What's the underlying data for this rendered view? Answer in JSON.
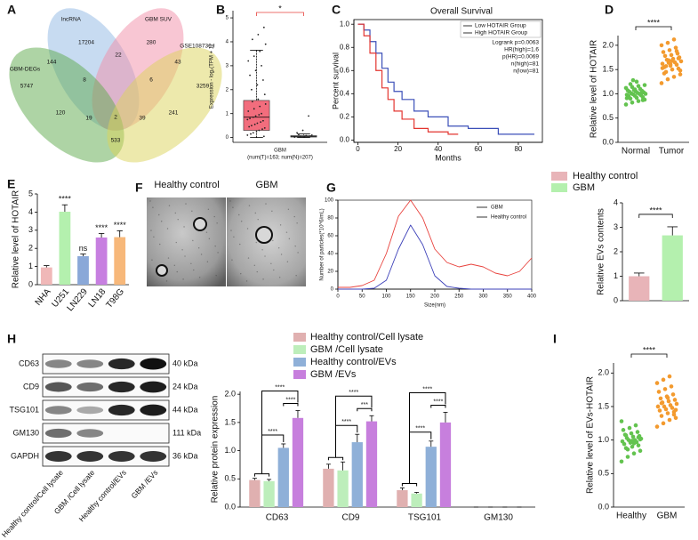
{
  "chart_data": [
    {
      "panel": "A",
      "type": "venn",
      "sets": [
        {
          "name": "lncRNA",
          "color": "#8fb8e4"
        },
        {
          "name": "GBM SUV",
          "color": "#f28da8"
        },
        {
          "name": "GBM-DEGs",
          "color": "#5daa4c"
        },
        {
          "name": "GSE108736-I",
          "color": "#dcd35a"
        }
      ],
      "values": [
        17204,
        280,
        144,
        22,
        43,
        5747,
        8,
        6,
        3259,
        2,
        120,
        241,
        19,
        39,
        533
      ]
    },
    {
      "panel": "B",
      "type": "box",
      "ylabel": "Expression - log₂(TPM + 1)",
      "xlabel": [
        "GBM",
        "(num(T)=163; num(N)=207)"
      ],
      "annotation": "*",
      "annotation_color": "#e8413c",
      "ylim": [
        -0.2,
        5.3
      ],
      "yticks": [
        0,
        1,
        2,
        3,
        4,
        5
      ],
      "boxes": [
        {
          "color": "#f26d7d",
          "low": 0,
          "q1": 0.3,
          "median": 0.85,
          "q3": 1.55,
          "high": 3.65,
          "points": [
            0.1,
            0.2,
            0.3,
            0.4,
            0.5,
            0.6,
            0.7,
            0.8,
            0.9,
            1.0,
            1.1,
            1.2,
            1.3,
            1.4,
            1.5,
            1.6,
            0.05,
            0.15,
            0.25,
            0.35,
            0.45,
            0.55,
            0.65,
            0.75,
            0.85,
            0.95,
            1.8,
            2.0,
            2.2,
            2.4,
            2.6,
            2.8,
            3.0,
            3.2,
            3.4,
            3.6,
            3.9,
            4.1,
            4.3,
            4.6
          ]
        },
        {
          "color": "#bbbbbb",
          "low": 0,
          "q1": 0.02,
          "median": 0.05,
          "q3": 0.08,
          "high": 0.15,
          "points": [
            0.02,
            0.05,
            0.08,
            0.1,
            0.12,
            0.04,
            0.06,
            0.2,
            0.3,
            0.9
          ]
        }
      ]
    },
    {
      "panel": "C",
      "type": "step",
      "title": "Overall Survival",
      "xlabel": "Months",
      "ylabel": "Percent survival",
      "xlim": [
        -2,
        92
      ],
      "xticks": [
        0,
        20,
        40,
        60,
        80
      ],
      "ylim": [
        -0.02,
        1.04
      ],
      "yticks": [
        {
          "value": 0,
          "label": "0.0"
        },
        0.2,
        0.4,
        0.6,
        0.8,
        {
          "value": 1,
          "label": "1.0"
        }
      ],
      "series": [
        {
          "name": "Low HOTAIR Group",
          "color": "#3b4fb8",
          "x": [
            0,
            3,
            6,
            9,
            12,
            15,
            18,
            22,
            28,
            35,
            45,
            55,
            70,
            88
          ],
          "values": [
            1,
            0.95,
            0.85,
            0.75,
            0.62,
            0.5,
            0.42,
            0.35,
            0.25,
            0.2,
            0.12,
            0.1,
            0.05,
            0.05
          ]
        },
        {
          "name": "High HOTAIR Group",
          "color": "#e3342f",
          "x": [
            0,
            3,
            6,
            9,
            12,
            15,
            18,
            22,
            28,
            35,
            45,
            50
          ],
          "values": [
            1,
            0.9,
            0.75,
            0.6,
            0.45,
            0.35,
            0.25,
            0.18,
            0.1,
            0.07,
            0.05,
            0.05
          ]
        }
      ],
      "stats": [
        "Logrank p=0.0063",
        "HR(high)=1.6",
        "p(HR)=0.0069",
        "n(high)=81",
        "n(low)=81"
      ]
    },
    {
      "panel": "D",
      "type": "strip",
      "ylabel": "Relative level of HOTAIR",
      "categories": [
        "Normal",
        "Tumor"
      ],
      "series": [
        {
          "color": "#63c34f",
          "values": [
            0.78,
            0.82,
            0.85,
            0.88,
            0.9,
            0.92,
            0.93,
            0.95,
            0.96,
            0.97,
            0.98,
            0.99,
            1.0,
            1.0,
            1.01,
            1.02,
            1.03,
            1.04,
            1.05,
            1.06,
            1.07,
            1.08,
            1.1,
            1.12,
            1.14,
            1.16,
            1.18,
            1.2,
            1.25,
            0.87,
            0.94,
            1.09,
            1.0,
            0.91,
            1.28
          ]
        },
        {
          "color": "#f39a2e",
          "values": [
            1.22,
            1.3,
            1.35,
            1.4,
            1.45,
            1.5,
            1.52,
            1.55,
            1.58,
            1.6,
            1.62,
            1.64,
            1.65,
            1.67,
            1.7,
            1.72,
            1.75,
            1.78,
            1.8,
            1.83,
            1.86,
            1.9,
            1.95,
            2.0,
            2.05,
            2.12,
            1.48,
            1.57,
            1.68,
            1.73,
            1.42,
            1.61,
            1.88,
            1.53,
            1.69
          ]
        }
      ],
      "comparison": "****",
      "ylim": [
        0,
        2.2
      ],
      "yticks": [
        {
          "value": 0,
          "label": "0.0"
        },
        0.5,
        {
          "value": 1,
          "label": "1.0"
        },
        1.5,
        {
          "value": 2,
          "label": "2.0"
        }
      ]
    },
    {
      "panel": "E",
      "type": "bar",
      "ylabel": "Relative level of HOTAIR",
      "categories": [
        "NHA",
        "U251",
        "LN229",
        "LN18",
        "T98G"
      ],
      "values": [
        0.95,
        4.02,
        1.57,
        2.6,
        2.62
      ],
      "errors": [
        0.1,
        0.38,
        0.12,
        0.22,
        0.35
      ],
      "colors": [
        "#f0b8b8",
        "#b4f0ae",
        "#8aa8d8",
        "#c77fe0",
        "#f7b87a"
      ],
      "annotations": [
        null,
        "****",
        "ns",
        "****",
        "****"
      ],
      "ylim": [
        0,
        5
      ],
      "yticks": [
        0,
        1,
        2,
        3,
        4,
        5
      ]
    },
    {
      "panel": "F",
      "type": "image",
      "labels": [
        "Healthy control",
        "GBM"
      ]
    },
    {
      "panel": "G",
      "type": "line",
      "xlabel": "Size(nm)",
      "ylabel": "Number of particles(*10^6/mL)",
      "xlim": [
        0,
        400
      ],
      "xticks": [
        0,
        50,
        100,
        150,
        200,
        250,
        300,
        350,
        400
      ],
      "ylim": [
        0,
        100
      ],
      "yticks": [
        0,
        20,
        40,
        60,
        80,
        100
      ],
      "series": [
        {
          "name": "GBM",
          "color": "#e8413c",
          "x": [
            0,
            25,
            50,
            75,
            100,
            125,
            150,
            175,
            200,
            225,
            250,
            275,
            300,
            325,
            350,
            375,
            400
          ],
          "values": [
            2,
            2,
            4,
            10,
            40,
            82,
            100,
            80,
            45,
            30,
            25,
            28,
            25,
            18,
            15,
            20,
            35
          ]
        },
        {
          "name": "Healthy control",
          "color": "#3b3fb8",
          "x": [
            0,
            25,
            50,
            75,
            100,
            125,
            150,
            175,
            200,
            225,
            250,
            275,
            300,
            325,
            350,
            375,
            400
          ],
          "values": [
            0,
            0,
            0,
            1,
            10,
            45,
            72,
            50,
            15,
            3,
            1,
            0,
            0,
            0,
            0,
            0,
            0
          ]
        }
      ]
    },
    {
      "type": "bar",
      "ylabel": "Relative EVs contents",
      "categories": [
        "Healthy control",
        "GBM"
      ],
      "values": [
        1.0,
        2.67
      ],
      "errors": [
        0.13,
        0.35
      ],
      "colors": [
        "#e8b4b8",
        "#b4f0ae"
      ],
      "legend": true,
      "comparison": "****",
      "ylim": [
        0,
        4
      ],
      "yticks": [
        0,
        1,
        2,
        3,
        4
      ]
    },
    {
      "panel": "H",
      "type": "blot",
      "rows": [
        {
          "name": "CD63",
          "size": "40 kDa"
        },
        {
          "name": "CD9",
          "size": "24 kDa"
        },
        {
          "name": "TSG101",
          "size": "44 kDa"
        },
        {
          "name": "GM130",
          "size": "111 kDa"
        },
        {
          "name": "GAPDH",
          "size": "36 kDa"
        }
      ],
      "lanes": [
        "Healthy control/Cell lysate",
        "GBM /Cell lysate",
        "Healthy control/EVs",
        "GBM /EVs"
      ]
    },
    {
      "type": "bar",
      "ylabel": "Relative protein expression",
      "categories": [
        "CD63",
        "CD9",
        "TSG101",
        "GM130"
      ],
      "series": [
        {
          "name": "Healthy control/Cell lysate",
          "color": "#e0b0b0",
          "values": [
            0.48,
            0.68,
            0.3,
            0
          ],
          "errors": [
            0.03,
            0.08,
            0.04,
            0
          ]
        },
        {
          "name": "GBM /Cell lysate",
          "color": "#bdeebb",
          "values": [
            0.46,
            0.65,
            0.24,
            0
          ],
          "errors": [
            0.03,
            0.15,
            0.02,
            0
          ]
        },
        {
          "name": "Healthy control/EVs",
          "color": "#8fb0d8",
          "values": [
            1.05,
            1.15,
            1.07,
            0
          ],
          "errors": [
            0.07,
            0.14,
            0.1,
            0
          ]
        },
        {
          "name": "GBM /EVs",
          "color": "#c77fdd",
          "values": [
            1.58,
            1.52,
            1.5,
            0
          ],
          "errors": [
            0.13,
            0.1,
            0.18,
            0
          ]
        }
      ],
      "comparisons": [
        [
          "****",
          "****",
          "****"
        ],
        [
          "****",
          "****",
          "***"
        ],
        [
          "****",
          "****",
          "****"
        ],
        null
      ],
      "ylim": [
        0,
        2.05
      ],
      "yticks": [
        {
          "value": 0,
          "label": "0.0"
        },
        0.5,
        {
          "value": 1,
          "label": "1.0"
        },
        1.5,
        {
          "value": 2,
          "label": "2.0"
        }
      ]
    },
    {
      "panel": "I",
      "type": "strip",
      "ylabel": "Relative level of EVs-HOTAIR",
      "categories": [
        "Healthy",
        "GBM"
      ],
      "series": [
        {
          "color": "#63c34f",
          "values": [
            0.68,
            0.75,
            0.8,
            0.84,
            0.88,
            0.9,
            0.92,
            0.94,
            0.96,
            0.97,
            0.98,
            1.0,
            1.0,
            1.02,
            1.03,
            1.05,
            1.06,
            1.08,
            1.1,
            1.12,
            1.15,
            1.18,
            1.22,
            1.28,
            0.86,
            0.95,
            1.01,
            1.07,
            0.99,
            1.04
          ]
        },
        {
          "color": "#f39a2e",
          "values": [
            1.2,
            1.25,
            1.3,
            1.33,
            1.36,
            1.4,
            1.42,
            1.44,
            1.46,
            1.48,
            1.5,
            1.5,
            1.52,
            1.54,
            1.56,
            1.58,
            1.6,
            1.62,
            1.65,
            1.68,
            1.72,
            1.76,
            1.8,
            1.85,
            1.9,
            1.95,
            1.45,
            1.55,
            1.63,
            1.38
          ]
        }
      ],
      "comparison": "****",
      "ylim": [
        0,
        2.15
      ],
      "yticks": [
        {
          "value": 0,
          "label": "0.0"
        },
        0.5,
        {
          "value": 1,
          "label": "1.0"
        },
        1.5,
        {
          "value": 2,
          "label": "2.0"
        }
      ]
    }
  ]
}
